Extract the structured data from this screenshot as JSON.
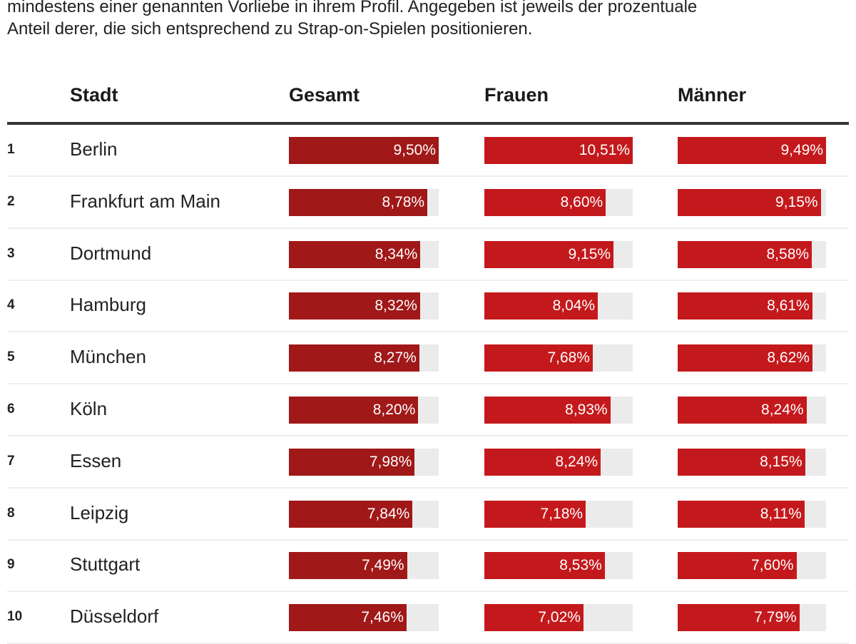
{
  "intro": {
    "line1": "mindestens einer genannten Vorliebe in ihrem Profil. Angegeben ist jeweils der prozentuale",
    "line2": "Anteil derer, die sich entsprechend zu Strap-on-Spielen positionieren."
  },
  "colors": {
    "gesamt": "#a01818",
    "frauen": "#c4191c",
    "maenner": "#c4191c",
    "track": "#ebebeb"
  },
  "chart_data": {
    "type": "table",
    "columns": [
      "Stadt",
      "Gesamt",
      "Frauen",
      "Männer"
    ],
    "rows": [
      {
        "rank": "1",
        "city": "Berlin",
        "gesamt": 9.5,
        "frauen": 10.51,
        "maenner": 9.49,
        "labels": [
          "9,50%",
          "10,51%",
          "9,49%"
        ]
      },
      {
        "rank": "2",
        "city": "Frankfurt am Main",
        "gesamt": 8.78,
        "frauen": 8.6,
        "maenner": 9.15,
        "labels": [
          "8,78%",
          "8,60%",
          "9,15%"
        ]
      },
      {
        "rank": "3",
        "city": "Dortmund",
        "gesamt": 8.34,
        "frauen": 9.15,
        "maenner": 8.58,
        "labels": [
          "8,34%",
          "9,15%",
          "8,58%"
        ]
      },
      {
        "rank": "4",
        "city": "Hamburg",
        "gesamt": 8.32,
        "frauen": 8.04,
        "maenner": 8.61,
        "labels": [
          "8,32%",
          "8,04%",
          "8,61%"
        ]
      },
      {
        "rank": "5",
        "city": "München",
        "gesamt": 8.27,
        "frauen": 7.68,
        "maenner": 8.62,
        "labels": [
          "8,27%",
          "7,68%",
          "8,62%"
        ]
      },
      {
        "rank": "6",
        "city": "Köln",
        "gesamt": 8.2,
        "frauen": 8.93,
        "maenner": 8.24,
        "labels": [
          "8,20%",
          "8,93%",
          "8,24%"
        ]
      },
      {
        "rank": "7",
        "city": "Essen",
        "gesamt": 7.98,
        "frauen": 8.24,
        "maenner": 8.15,
        "labels": [
          "7,98%",
          "8,24%",
          "8,15%"
        ]
      },
      {
        "rank": "8",
        "city": "Leipzig",
        "gesamt": 7.84,
        "frauen": 7.18,
        "maenner": 8.11,
        "labels": [
          "7,84%",
          "7,18%",
          "8,11%"
        ]
      },
      {
        "rank": "9",
        "city": "Stuttgart",
        "gesamt": 7.49,
        "frauen": 8.53,
        "maenner": 7.6,
        "labels": [
          "7,49%",
          "8,53%",
          "7,60%"
        ]
      },
      {
        "rank": "10",
        "city": "Düsseldorf",
        "gesamt": 7.46,
        "frauen": 7.02,
        "maenner": 7.79,
        "labels": [
          "7,46%",
          "7,02%",
          "7,79%"
        ]
      }
    ]
  }
}
